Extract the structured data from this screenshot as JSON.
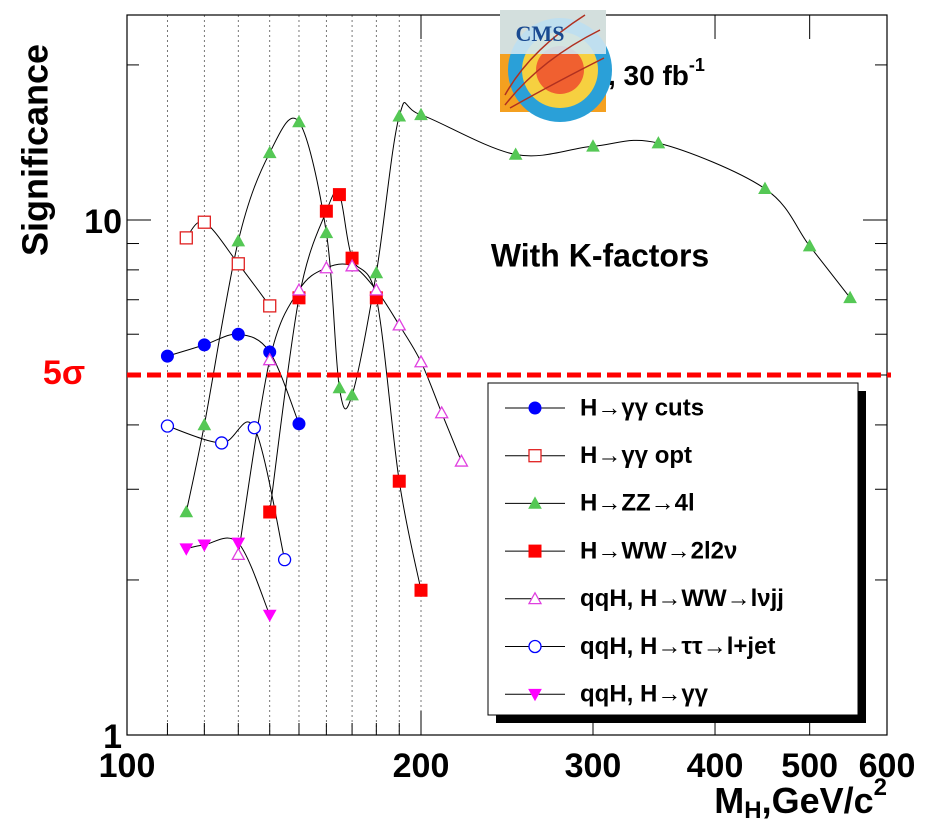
{
  "chart_data": {
    "type": "line",
    "x_label": {
      "main": "M",
      "sub": "H",
      "rest": ",GeV/c",
      "sup": "2"
    },
    "y_label": "Significance",
    "lumi": {
      "text": ", 30 fb",
      "sup": "-1"
    },
    "logo_text": "CMS",
    "annotation": "With K-factors",
    "threshold": {
      "value": 5,
      "label": "5σ",
      "color": "#ff0000"
    },
    "xlim": [
      100,
      600
    ],
    "ylim": [
      1,
      25
    ],
    "xlog": true,
    "ylog": true,
    "xticks": [
      100,
      200,
      300,
      400,
      500,
      600
    ],
    "xgrid": [
      110,
      120,
      130,
      140,
      150,
      160,
      170,
      180,
      190,
      200
    ],
    "yticks": [
      1,
      10
    ],
    "yminor": [
      2,
      3,
      4,
      5,
      6,
      7,
      8,
      9,
      20
    ],
    "series": [
      {
        "name": "H→γγ cuts",
        "color": "#0000ff",
        "marker": "circle",
        "x": [
          110,
          120,
          130,
          140,
          150
        ],
        "values": [
          5.44,
          5.72,
          6.0,
          5.54,
          4.02
        ]
      },
      {
        "name": "H→γγ opt",
        "color": "#e02020",
        "marker": "square-open",
        "x": [
          115,
          120,
          130,
          140
        ],
        "values": [
          9.23,
          9.9,
          8.22,
          6.81
        ]
      },
      {
        "name": "H→ZZ→4l",
        "color": "#55c855",
        "marker": "triangle",
        "x": [
          115,
          120,
          130,
          140,
          150,
          160,
          165,
          170,
          180,
          190,
          200,
          250,
          300,
          350,
          450,
          500,
          550
        ],
        "values": [
          2.71,
          4.0,
          9.1,
          13.5,
          15.5,
          9.44,
          4.72,
          4.57,
          7.89,
          15.9,
          16.0,
          13.4,
          13.9,
          14.1,
          11.5,
          8.9,
          7.06
        ]
      },
      {
        "name": "H→WW→2l2ν",
        "color": "#ff0000",
        "marker": "square",
        "x": [
          140,
          150,
          160,
          165,
          170,
          180,
          190,
          200
        ],
        "values": [
          2.71,
          7.06,
          10.4,
          11.2,
          8.43,
          7.06,
          3.11,
          1.91
        ]
      },
      {
        "name": "qqH, H→WW→lνjj",
        "color": "#e040e0",
        "marker": "triangle-open",
        "x": [
          130,
          140,
          150,
          160,
          170,
          180,
          190,
          200,
          210,
          220
        ],
        "values": [
          2.24,
          5.35,
          7.31,
          8.07,
          8.14,
          7.31,
          6.25,
          5.3,
          4.22,
          3.4
        ]
      },
      {
        "name": "qqH, H→ττ→l+jet",
        "color": "#0000ff",
        "marker": "circle-open",
        "x": [
          110,
          125,
          135,
          145
        ],
        "values": [
          3.98,
          3.69,
          3.95,
          2.19
        ]
      },
      {
        "name": "qqH, H→γγ",
        "color": "#ff00ff",
        "marker": "triangle-down",
        "x": [
          115,
          120,
          130,
          140
        ],
        "values": [
          2.3,
          2.34,
          2.36,
          1.71
        ]
      }
    ]
  }
}
